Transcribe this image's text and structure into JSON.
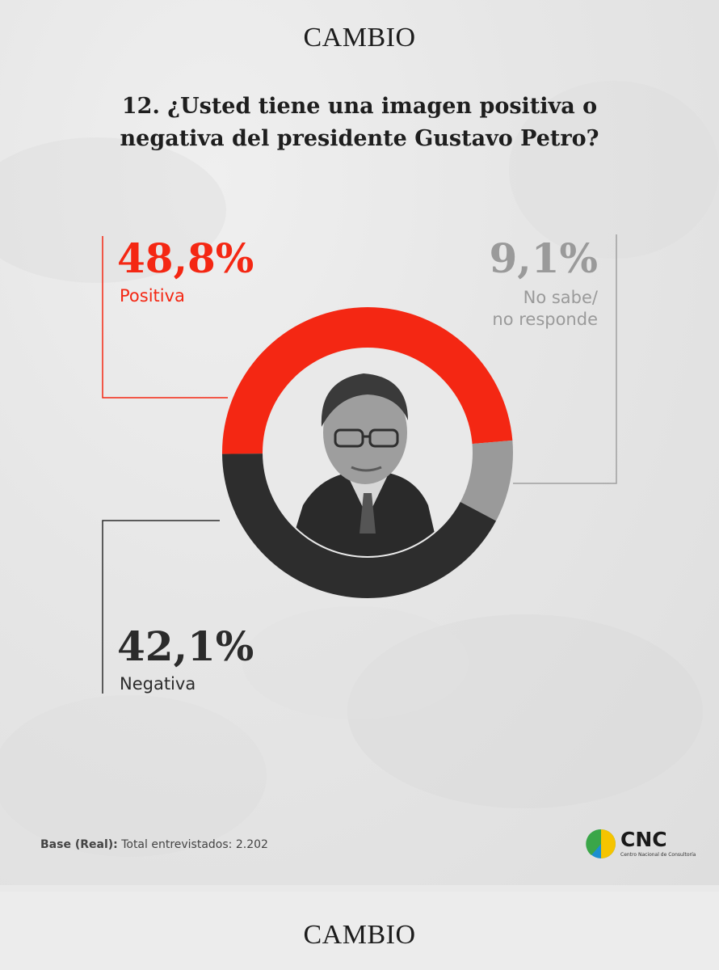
{
  "brand": "CAMBIO",
  "question": "12. ¿Usted tiene una imagen positiva o negativa del presidente Gustavo Petro?",
  "chart_data": {
    "type": "pie",
    "variant": "donut",
    "slices": [
      {
        "label": "Positiva",
        "value": 48.8,
        "display": "48,8%",
        "color": "#f42713"
      },
      {
        "label": "No sabe/ no responde",
        "value": 9.1,
        "display": "9,1%",
        "color": "#9a9a9a"
      },
      {
        "label": "Negativa",
        "value": 42.1,
        "display": "42,1%",
        "color": "#2d2d2d"
      }
    ]
  },
  "labels": {
    "positiva_value": "48,8%",
    "positiva_label": "Positiva",
    "nosabe_value": "9,1%",
    "nosabe_label_1": "No sabe/",
    "nosabe_label_2": "no responde",
    "negativa_value": "42,1%",
    "negativa_label": "Negativa"
  },
  "footnote": {
    "bold": "Base (Real):",
    "text": " Total entrevistados: 2.202"
  },
  "logo": {
    "name": "CNC",
    "subtitle": "Centro Nacional de Consultoría"
  }
}
